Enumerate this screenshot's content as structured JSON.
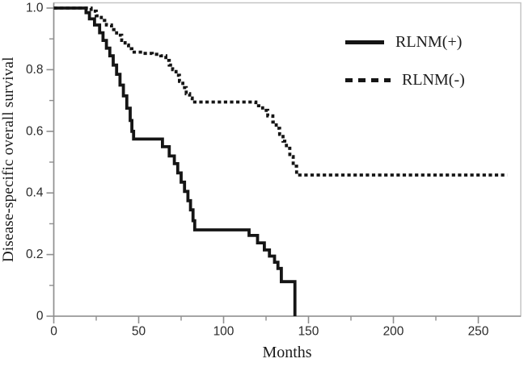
{
  "figure": {
    "background_color": "#ffffff",
    "frame_color": "#c2c2c2",
    "axis_color": "#8f8f8f",
    "tick_label_color": "#2a2a2a",
    "curve_color": "#151515"
  },
  "chart_data": {
    "type": "line",
    "subtype": "kaplan-meier-step-curves",
    "title": "",
    "xlabel": "Months",
    "ylabel": "Disease-specific overall survival",
    "xlim": [
      0,
      275
    ],
    "ylim": [
      0,
      1.0
    ],
    "grid": false,
    "legend_position": "inside-upper-right",
    "x_major_ticks": [
      0,
      50,
      100,
      150,
      200,
      250
    ],
    "x_major_tick_labels": [
      "0",
      "50",
      "100",
      "150",
      "200",
      "250"
    ],
    "x_minor_ticks": [
      25,
      75,
      125,
      175,
      225
    ],
    "y_major_ticks": [
      0,
      0.2,
      0.4,
      0.6,
      0.8,
      1.0
    ],
    "y_major_tick_labels": [
      "0",
      "0.2",
      "0.4",
      "0.6",
      "0.8",
      "1.0"
    ],
    "y_minor_ticks": [
      0.1,
      0.3,
      0.5,
      0.7,
      0.9
    ],
    "series": [
      {
        "name": "RLNM(+)",
        "style": "solid",
        "color": "#151515",
        "points": [
          [
            0,
            1.0
          ],
          [
            19,
            0.985
          ],
          [
            21,
            0.965
          ],
          [
            24,
            0.945
          ],
          [
            27,
            0.92
          ],
          [
            29,
            0.895
          ],
          [
            31,
            0.87
          ],
          [
            33,
            0.845
          ],
          [
            35,
            0.815
          ],
          [
            37,
            0.785
          ],
          [
            39,
            0.75
          ],
          [
            41,
            0.715
          ],
          [
            43,
            0.675
          ],
          [
            45,
            0.635
          ],
          [
            46,
            0.6
          ],
          [
            47,
            0.575
          ],
          [
            64,
            0.55
          ],
          [
            68,
            0.52
          ],
          [
            71,
            0.495
          ],
          [
            73,
            0.465
          ],
          [
            75,
            0.435
          ],
          [
            77,
            0.405
          ],
          [
            79,
            0.375
          ],
          [
            80.5,
            0.345
          ],
          [
            82,
            0.31
          ],
          [
            83,
            0.28
          ],
          [
            115,
            0.262
          ],
          [
            120,
            0.238
          ],
          [
            124,
            0.215
          ],
          [
            127,
            0.195
          ],
          [
            130,
            0.175
          ],
          [
            132,
            0.155
          ],
          [
            134,
            0.112
          ],
          [
            142,
            0
          ]
        ]
      },
      {
        "name": "RLNM(-)",
        "style": "dashed",
        "color": "#151515",
        "points": [
          [
            0,
            1.0
          ],
          [
            22,
            0.99
          ],
          [
            25,
            0.975
          ],
          [
            28,
            0.96
          ],
          [
            31,
            0.945
          ],
          [
            34,
            0.93
          ],
          [
            37,
            0.912
          ],
          [
            40,
            0.895
          ],
          [
            42,
            0.88
          ],
          [
            44,
            0.868
          ],
          [
            46,
            0.857
          ],
          [
            52,
            0.853
          ],
          [
            58,
            0.85
          ],
          [
            63,
            0.845
          ],
          [
            66,
            0.83
          ],
          [
            68,
            0.815
          ],
          [
            70,
            0.8
          ],
          [
            72,
            0.782
          ],
          [
            74,
            0.762
          ],
          [
            76,
            0.742
          ],
          [
            78,
            0.722
          ],
          [
            80,
            0.708
          ],
          [
            81.5,
            0.695
          ],
          [
            119,
            0.683
          ],
          [
            123,
            0.668
          ],
          [
            126,
            0.65
          ],
          [
            129,
            0.63
          ],
          [
            131,
            0.61
          ],
          [
            133,
            0.59
          ],
          [
            135,
            0.568
          ],
          [
            137,
            0.545
          ],
          [
            139,
            0.518
          ],
          [
            141,
            0.487
          ],
          [
            143,
            0.458
          ],
          [
            267,
            0.458
          ]
        ]
      }
    ]
  },
  "legend": {
    "items": [
      {
        "label": "RLNM(+)",
        "line_style": "solid"
      },
      {
        "label": "RLNM(-)",
        "line_style": "dashed"
      }
    ]
  }
}
